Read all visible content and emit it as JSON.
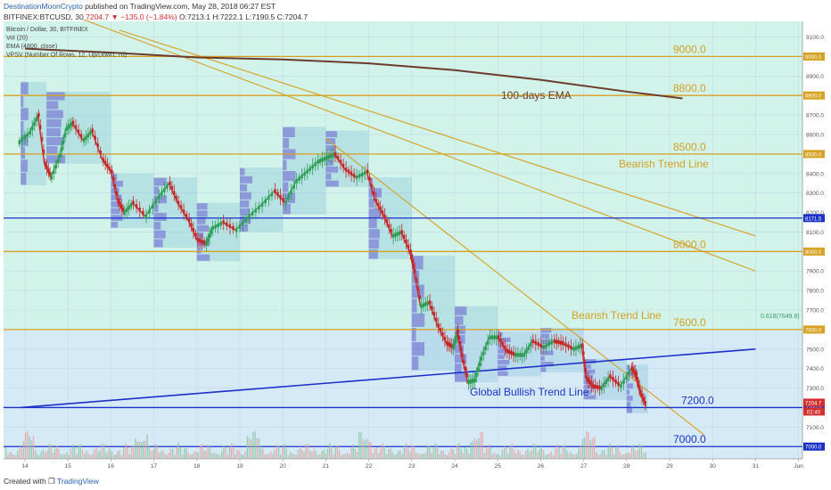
{
  "header": {
    "publisher": "DestinationMoonCrypto",
    "published_text": "published on TradingView.com, May 28, 2018 06:27 EST",
    "symbol_line": "BITFINEX:BTCUSD, 30",
    "last_price": "7204.7",
    "change": "−135.0 (−1.84%)",
    "ohlc": "O:7213.1 H:7222.1 L:7190.5 C:7204.7"
  },
  "footer": {
    "created_with": "Created with",
    "brand": "TradingView"
  },
  "colors": {
    "bg_green": "#d2f3ea",
    "bg_blue": "#d6e9f6",
    "orange": "#d6a021",
    "blue": "#1a31c8",
    "ema": "#6d3b2c",
    "candle_up": "#2e9e54",
    "candle_down": "#c62828",
    "profile": "#6a5fd0"
  },
  "chart_data": {
    "type": "line",
    "legend": [
      "Bitcoin / Dollar, 30, BITFINEX",
      "Vol (20)",
      "EMA (4800, close)",
      "VPSV (Number Of Rows, 12, Up/Down, 70)"
    ],
    "x_ticks": [
      "14",
      "15",
      "16",
      "17",
      "18",
      "19",
      "20",
      "21",
      "22",
      "23",
      "24",
      "25",
      "26",
      "27",
      "28",
      "29",
      "30",
      "31",
      "Jun"
    ],
    "y_ticks": [
      "9100.0",
      "9000.0",
      "8900.0",
      "8800.0",
      "8700.0",
      "8600.0",
      "8500.0",
      "8400.0",
      "8300.0",
      "8200.0",
      "8100.0",
      "8000.0",
      "7900.0",
      "7800.0",
      "7700.0",
      "7600.0",
      "7500.0",
      "7400.0",
      "7300.0",
      "7200.0",
      "7100.0",
      "7000.0"
    ],
    "ylim": [
      6960,
      9180
    ],
    "levels": [
      {
        "label": "9000.0",
        "value": 9000,
        "color": "orange",
        "axis_tag": "9000.0"
      },
      {
        "label": "8800.0",
        "value": 8800,
        "color": "orange",
        "axis_tag": "8800.0"
      },
      {
        "label": "8500.0",
        "value": 8500,
        "color": "orange",
        "axis_tag": "8500.0"
      },
      {
        "label": "",
        "value": 8171.5,
        "color": "blue",
        "axis_tag": "8171.5"
      },
      {
        "label": "8000.0",
        "value": 8000,
        "color": "orange",
        "axis_tag": "8000.0"
      },
      {
        "label": "7600.0",
        "value": 7600,
        "color": "orange",
        "axis_tag": "7600.0"
      },
      {
        "label": "7200.0",
        "value": 7200,
        "color": "blue",
        "axis_tag": "7200.0"
      },
      {
        "label": "7000.0",
        "value": 7000,
        "color": "blue",
        "axis_tag": "7000.0"
      }
    ],
    "fib_label": "0.618(7649.8)",
    "price_tags": [
      "7204.7",
      "02:40"
    ],
    "annotations": {
      "ema": "100-days EMA",
      "bearish_1": "Bearish Trend Line",
      "bearish_2": "Bearish Trend Line",
      "bullish": "Global Bullish Trend Line"
    },
    "ema_series": {
      "x": [
        14.0,
        16.0,
        18.0,
        20.0,
        22.0,
        24.0,
        26.0,
        28.0,
        29.3
      ],
      "y": [
        9040,
        9020,
        8995,
        8985,
        8965,
        8930,
        8880,
        8820,
        8785
      ]
    },
    "trendlines": [
      {
        "name": "Bearish Trend Line",
        "x": [
          16.2,
          31.0
        ],
        "y": [
          9135,
          8080
        ],
        "color": "orange"
      },
      {
        "name": "Bearish Trend Line",
        "x": [
          21.0,
          29.8
        ],
        "y": [
          8580,
          7060
        ],
        "color": "orange"
      },
      {
        "name": "",
        "x": [
          14.5,
          31.0
        ],
        "y": [
          9260,
          7900
        ],
        "color": "orange"
      },
      {
        "name": "Global Bullish Trend Line",
        "x": [
          13.9,
          31.0
        ],
        "y": [
          7200,
          7500
        ],
        "color": "blue"
      }
    ],
    "price_series": {
      "x": [
        13.85,
        14.1,
        14.3,
        14.45,
        14.6,
        14.8,
        14.95,
        15.1,
        15.35,
        15.55,
        15.8,
        16.0,
        16.15,
        16.3,
        16.5,
        16.8,
        17.1,
        17.35,
        17.55,
        17.8,
        18.0,
        18.2,
        18.35,
        18.6,
        18.9,
        19.2,
        19.5,
        19.8,
        20.05,
        20.3,
        20.55,
        20.8,
        21.0,
        21.2,
        21.45,
        21.7,
        21.95,
        22.15,
        22.35,
        22.55,
        22.75,
        22.95,
        23.05,
        23.2,
        23.4,
        23.6,
        23.8,
        23.95,
        24.05,
        24.15,
        24.3,
        24.45,
        24.6,
        24.8,
        25.0,
        25.2,
        25.4,
        25.6,
        25.8,
        26.05,
        26.3,
        26.5,
        26.75,
        26.95,
        27.05,
        27.2,
        27.4,
        27.6,
        27.85,
        28.1,
        28.2,
        28.3,
        28.45
      ],
      "y": [
        8560,
        8610,
        8700,
        8450,
        8380,
        8490,
        8630,
        8660,
        8570,
        8620,
        8470,
        8410,
        8260,
        8200,
        8250,
        8180,
        8280,
        8350,
        8250,
        8160,
        8060,
        8040,
        8120,
        8150,
        8110,
        8180,
        8240,
        8310,
        8250,
        8360,
        8410,
        8460,
        8480,
        8500,
        8420,
        8380,
        8410,
        8260,
        8180,
        8080,
        8100,
        8000,
        7900,
        7720,
        7740,
        7620,
        7530,
        7510,
        7590,
        7470,
        7330,
        7340,
        7450,
        7560,
        7560,
        7490,
        7470,
        7470,
        7540,
        7510,
        7540,
        7530,
        7500,
        7520,
        7350,
        7310,
        7300,
        7360,
        7310,
        7400,
        7370,
        7280,
        7205
      ]
    },
    "volume_profiles": [
      {
        "x0": 13.9,
        "x1": 14.5,
        "y0": 8340,
        "y1": 8870
      },
      {
        "x0": 14.5,
        "x1": 16.0,
        "y0": 8450,
        "y1": 8820
      },
      {
        "x0": 16.0,
        "x1": 17.0,
        "y0": 8120,
        "y1": 8400
      },
      {
        "x0": 17.0,
        "x1": 18.0,
        "y0": 8020,
        "y1": 8380
      },
      {
        "x0": 18.0,
        "x1": 19.0,
        "y0": 7950,
        "y1": 8250
      },
      {
        "x0": 19.0,
        "x1": 20.0,
        "y0": 8100,
        "y1": 8430
      },
      {
        "x0": 20.0,
        "x1": 21.0,
        "y0": 8190,
        "y1": 8640
      },
      {
        "x0": 21.0,
        "x1": 22.0,
        "y0": 8330,
        "y1": 8620
      },
      {
        "x0": 22.0,
        "x1": 23.0,
        "y0": 7960,
        "y1": 8380
      },
      {
        "x0": 23.0,
        "x1": 24.0,
        "y0": 7390,
        "y1": 7980
      },
      {
        "x0": 24.0,
        "x1": 25.0,
        "y0": 7330,
        "y1": 7720
      },
      {
        "x0": 25.0,
        "x1": 26.0,
        "y0": 7360,
        "y1": 7590
      },
      {
        "x0": 26.0,
        "x1": 27.0,
        "y0": 7380,
        "y1": 7610
      },
      {
        "x0": 27.0,
        "x1": 28.0,
        "y0": 7240,
        "y1": 7450
      },
      {
        "x0": 28.0,
        "x1": 28.5,
        "y0": 7170,
        "y1": 7420
      }
    ]
  }
}
